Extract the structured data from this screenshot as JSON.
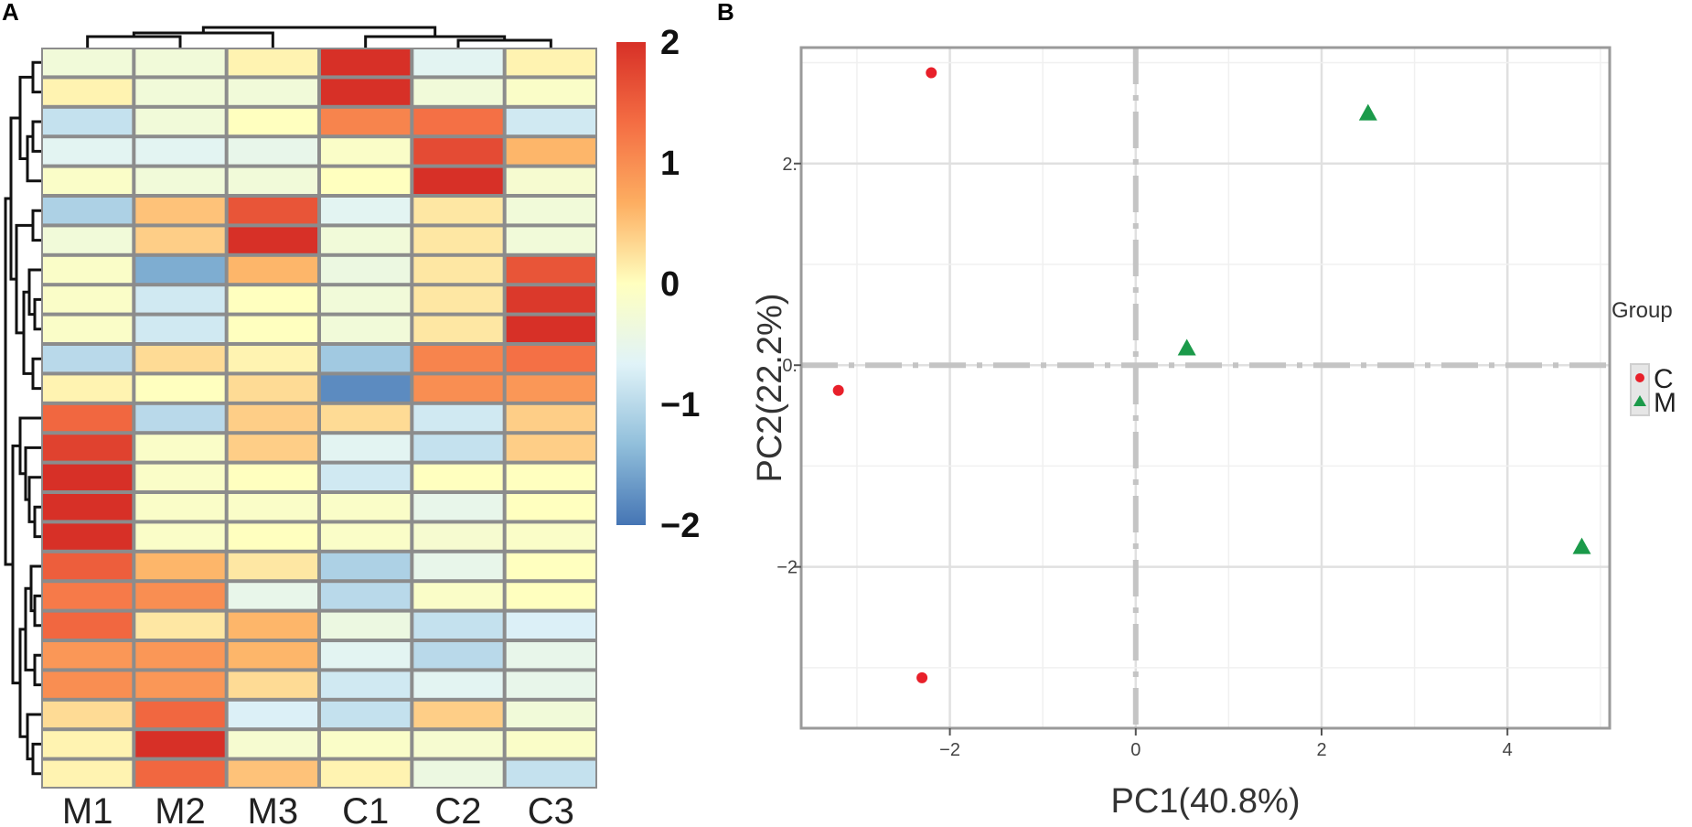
{
  "chart_data": [
    {
      "type": "heatmap",
      "panel_label": "A",
      "columns": [
        "M1",
        "M2",
        "M3",
        "C1",
        "C2",
        "C3"
      ],
      "color_scale": {
        "min": -2,
        "max": 2,
        "ticks": [
          "2",
          "1",
          "0",
          "−1",
          "−2"
        ],
        "colors": [
          "#4575b4",
          "#91bfdb",
          "#e0f3f8",
          "#ffffbf",
          "#fdae61",
          "#f46d43",
          "#d73027"
        ]
      },
      "values": [
        [
          -0.3,
          -0.3,
          0.1,
          2.0,
          -0.6,
          0.1
        ],
        [
          0.1,
          -0.3,
          -0.3,
          2.0,
          -0.3,
          -0.1
        ],
        [
          -0.9,
          -0.3,
          0.0,
          1.1,
          1.3,
          -0.8
        ],
        [
          -0.6,
          -0.6,
          -0.5,
          -0.1,
          1.7,
          0.6
        ],
        [
          -0.1,
          -0.3,
          -0.3,
          0.0,
          2.0,
          -0.2
        ],
        [
          -1.1,
          0.5,
          1.6,
          -0.6,
          0.2,
          -0.3
        ],
        [
          -0.3,
          0.4,
          2.0,
          -0.3,
          0.2,
          -0.3
        ],
        [
          -0.1,
          -1.5,
          0.6,
          -0.4,
          0.2,
          1.6
        ],
        [
          -0.1,
          -0.8,
          0.0,
          -0.3,
          0.2,
          1.9
        ],
        [
          -0.1,
          -0.8,
          0.0,
          -0.3,
          0.2,
          2.0
        ],
        [
          -1.0,
          0.3,
          0.1,
          -1.2,
          1.1,
          1.3
        ],
        [
          0.1,
          0.0,
          0.3,
          -1.8,
          1.0,
          0.9
        ],
        [
          1.4,
          -1.0,
          0.4,
          0.3,
          -0.8,
          0.4
        ],
        [
          1.8,
          -0.1,
          0.4,
          -0.6,
          -0.9,
          0.4
        ],
        [
          2.0,
          -0.1,
          0.0,
          -0.8,
          0.0,
          0.0
        ],
        [
          2.0,
          -0.1,
          -0.1,
          -0.1,
          -0.5,
          0.0
        ],
        [
          2.0,
          -0.1,
          0.0,
          -0.1,
          -0.2,
          -0.1
        ],
        [
          1.5,
          0.6,
          0.2,
          -1.1,
          -0.5,
          0.0
        ],
        [
          1.2,
          1.0,
          -0.5,
          -1.0,
          -0.1,
          0.0
        ],
        [
          1.4,
          0.2,
          0.6,
          -0.4,
          -0.9,
          -0.7
        ],
        [
          0.9,
          0.9,
          0.6,
          -0.6,
          -1.0,
          -0.5
        ],
        [
          1.0,
          0.9,
          0.3,
          -0.8,
          -0.6,
          -0.5
        ],
        [
          0.3,
          1.4,
          -0.7,
          -0.9,
          0.4,
          -0.3
        ],
        [
          0.1,
          2.0,
          -0.2,
          -0.1,
          -0.2,
          -0.1
        ],
        [
          0.1,
          1.4,
          0.5,
          0.1,
          -0.4,
          -0.9
        ]
      ]
    },
    {
      "type": "scatter",
      "panel_label": "B",
      "xlabel": "PC1(40.8%)",
      "ylabel": "PC2(22.2%)",
      "xlim": [
        -3.6,
        5.1
      ],
      "ylim": [
        -3.6,
        3.15
      ],
      "xticks": [
        -2,
        0,
        2,
        4
      ],
      "yticks": [
        2,
        0,
        -2
      ],
      "xtick_labels": [
        "−2",
        "0",
        "2",
        "4"
      ],
      "ytick_labels": [
        "2.",
        "0.",
        "−2"
      ],
      "legend_title": "Group",
      "series": [
        {
          "name": "C",
          "marker": "circle",
          "color": "#e8202a",
          "points": [
            {
              "x": -2.2,
              "y": 2.9
            },
            {
              "x": -3.2,
              "y": -0.25
            },
            {
              "x": -2.3,
              "y": -3.1
            }
          ]
        },
        {
          "name": "M",
          "marker": "triangle",
          "color": "#1b9a4a",
          "points": [
            {
              "x": 2.5,
              "y": 2.5
            },
            {
              "x": 0.55,
              "y": 0.17
            },
            {
              "x": 4.8,
              "y": -1.8
            }
          ]
        }
      ]
    }
  ]
}
